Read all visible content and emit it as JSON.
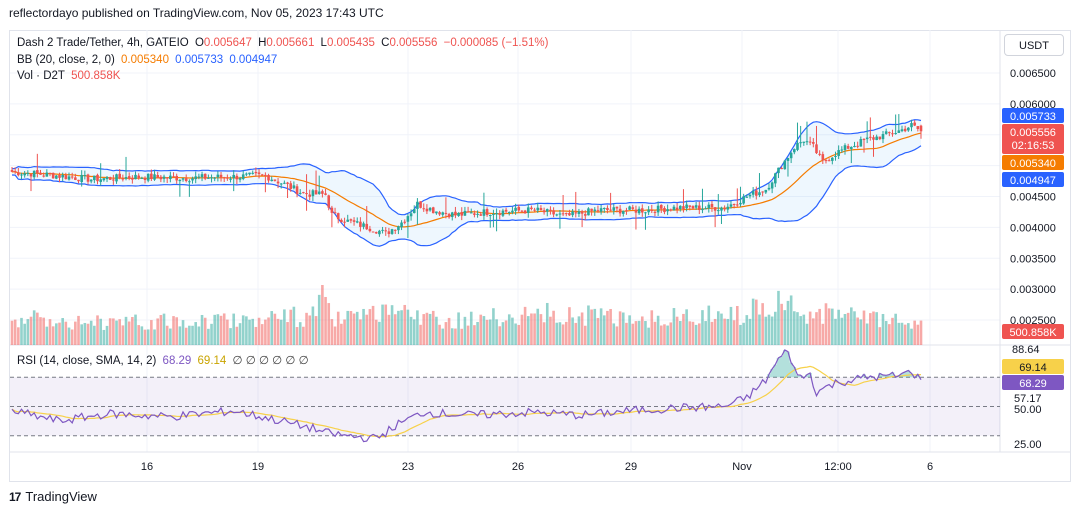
{
  "publisher": "reflectordayo published on TradingView.com, Nov 05, 2023 17:43 UTC",
  "footer": {
    "logo": "17",
    "brand": "TradingView"
  },
  "currency": "USDT",
  "legend": {
    "symbol": "Dash 2 Trade/Tether, 4h, GATEIO",
    "o_label": "O",
    "o": "0.005647",
    "h_label": "H",
    "h": "0.005661",
    "l_label": "L",
    "l": "0.005435",
    "c_label": "C",
    "c": "0.005556",
    "change": "−0.000085 (−1.51%)",
    "bb_label": "BB (20, close, 2, 0)",
    "bb_basis": "0.005340",
    "bb_upper": "0.005733",
    "bb_lower": "0.004947",
    "vol_label": "Vol · D2T",
    "vol": "500.858K",
    "rsi_label": "RSI (14, close, SMA, 14, 2)",
    "rsi": "68.29",
    "rsi_ma": "69.14",
    "rsi_extra": "∅ ∅ ∅ ∅ ∅ ∅"
  },
  "badges": {
    "upper": "0.005733",
    "last": "0.005556",
    "countdown": "02:16:53",
    "basis": "0.005340",
    "lower": "0.004947",
    "volume": "500.858K",
    "rsi_max": "88.64",
    "rsi_ma": "69.14",
    "rsi": "68.29"
  },
  "colors": {
    "up": "#26a69a",
    "down": "#ef5350",
    "basis": "#f57c00",
    "band": "#2962ff",
    "rsi": "#7e57c2",
    "rsi_ma": "#f7d14a"
  },
  "chart_data": {
    "type": "candlestick",
    "price_axis": {
      "ticks": [
        "0.006500",
        "0.006000",
        "0.005500",
        "0.005000",
        "0.004500",
        "0.004000",
        "0.003500",
        "0.003000",
        "0.002500"
      ],
      "range": [
        0.0023,
        0.0068
      ]
    },
    "rsi_axis": {
      "ticks": [
        "88.64",
        "57.17",
        "50.00",
        "25.00"
      ],
      "levels": [
        70,
        50,
        30
      ]
    },
    "time_axis": {
      "ticks": [
        "16",
        "19",
        "23",
        "26",
        "29",
        "Nov",
        "12:00",
        "6"
      ]
    },
    "candles_hint": "anchor path of approximate closes per 4h bar",
    "close_anchors": [
      [
        0,
        0.0049
      ],
      [
        12,
        0.00485
      ],
      [
        25,
        0.00478
      ],
      [
        40,
        0.00482
      ],
      [
        55,
        0.0048
      ],
      [
        70,
        0.00482
      ],
      [
        80,
        0.00484
      ],
      [
        86,
        0.0047
      ],
      [
        92,
        0.00455
      ],
      [
        99,
        0.00453
      ],
      [
        101,
        0.0042
      ],
      [
        106,
        0.0041
      ],
      [
        114,
        0.00398
      ],
      [
        118,
        0.0039
      ],
      [
        123,
        0.00408
      ],
      [
        128,
        0.00438
      ],
      [
        133,
        0.00428
      ],
      [
        140,
        0.0042
      ],
      [
        150,
        0.00425
      ],
      [
        165,
        0.00428
      ],
      [
        175,
        0.00418
      ],
      [
        185,
        0.00428
      ],
      [
        200,
        0.00428
      ],
      [
        210,
        0.00432
      ],
      [
        225,
        0.00432
      ],
      [
        232,
        0.0045
      ],
      [
        238,
        0.00462
      ],
      [
        243,
        0.005
      ],
      [
        247,
        0.0053
      ],
      [
        250,
        0.00542
      ],
      [
        253,
        0.0053
      ],
      [
        256,
        0.00505
      ],
      [
        260,
        0.0052
      ],
      [
        264,
        0.0053
      ],
      [
        270,
        0.00542
      ],
      [
        276,
        0.0055
      ],
      [
        281,
        0.00558
      ],
      [
        284,
        0.00565
      ],
      [
        287,
        0.00556
      ]
    ],
    "volume_anchors": [
      [
        0,
        0.6
      ],
      [
        40,
        0.5
      ],
      [
        95,
        0.65
      ],
      [
        98,
        1.1
      ],
      [
        101,
        0.55
      ],
      [
        120,
        0.7
      ],
      [
        140,
        0.55
      ],
      [
        170,
        0.7
      ],
      [
        200,
        0.6
      ],
      [
        230,
        0.7
      ],
      [
        238,
        1.0
      ],
      [
        250,
        0.75
      ],
      [
        287,
        0.45
      ]
    ],
    "rsi_anchors": [
      [
        0,
        47
      ],
      [
        15,
        40
      ],
      [
        30,
        45
      ],
      [
        50,
        43
      ],
      [
        70,
        47
      ],
      [
        85,
        40
      ],
      [
        95,
        35
      ],
      [
        99,
        32
      ],
      [
        105,
        30
      ],
      [
        115,
        28
      ],
      [
        122,
        38
      ],
      [
        130,
        46
      ],
      [
        145,
        44
      ],
      [
        165,
        46
      ],
      [
        180,
        44
      ],
      [
        195,
        47
      ],
      [
        210,
        49
      ],
      [
        225,
        50
      ],
      [
        232,
        56
      ],
      [
        238,
        68
      ],
      [
        242,
        82
      ],
      [
        245,
        88.64
      ],
      [
        248,
        70
      ],
      [
        252,
        72
      ],
      [
        254,
        60
      ],
      [
        260,
        66
      ],
      [
        270,
        70
      ],
      [
        280,
        71
      ],
      [
        284,
        74
      ],
      [
        287,
        68.29
      ]
    ]
  }
}
